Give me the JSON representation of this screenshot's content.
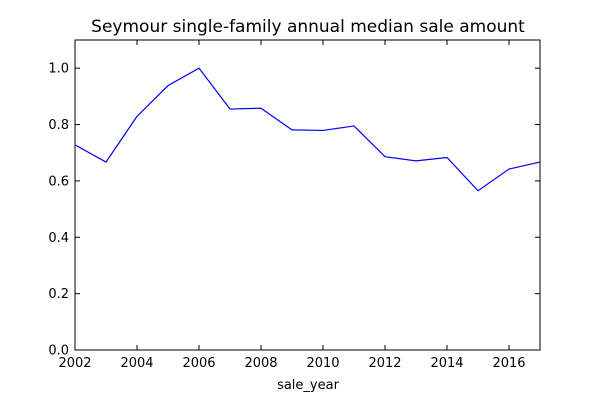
{
  "chart_data": {
    "type": "line",
    "title": "Seymour single-family annual median sale amount",
    "xlabel": "sale_year",
    "ylabel": "",
    "xlim": [
      2002,
      2017
    ],
    "ylim": [
      0.0,
      1.1
    ],
    "xticks": [
      2002,
      2004,
      2006,
      2008,
      2010,
      2012,
      2014,
      2016
    ],
    "xtick_labels": [
      "2002",
      "2004",
      "2006",
      "2008",
      "2010",
      "2012",
      "2014",
      "2016"
    ],
    "yticks": [
      0.0,
      0.2,
      0.4,
      0.6,
      0.8,
      1.0
    ],
    "ytick_labels": [
      "0.0",
      "0.2",
      "0.4",
      "0.6",
      "0.8",
      "1.0"
    ],
    "grid": false,
    "legend": "none",
    "series": [
      {
        "color": "#0000ff",
        "x": [
          2002,
          2003,
          2004,
          2005,
          2006,
          2007,
          2008,
          2009,
          2010,
          2011,
          2012,
          2013,
          2014,
          2015,
          2016,
          2017
        ],
        "y": [
          0.728,
          0.667,
          0.829,
          0.938,
          1.0,
          0.855,
          0.858,
          0.781,
          0.779,
          0.795,
          0.686,
          0.671,
          0.683,
          0.565,
          0.642,
          0.667
        ]
      }
    ]
  }
}
